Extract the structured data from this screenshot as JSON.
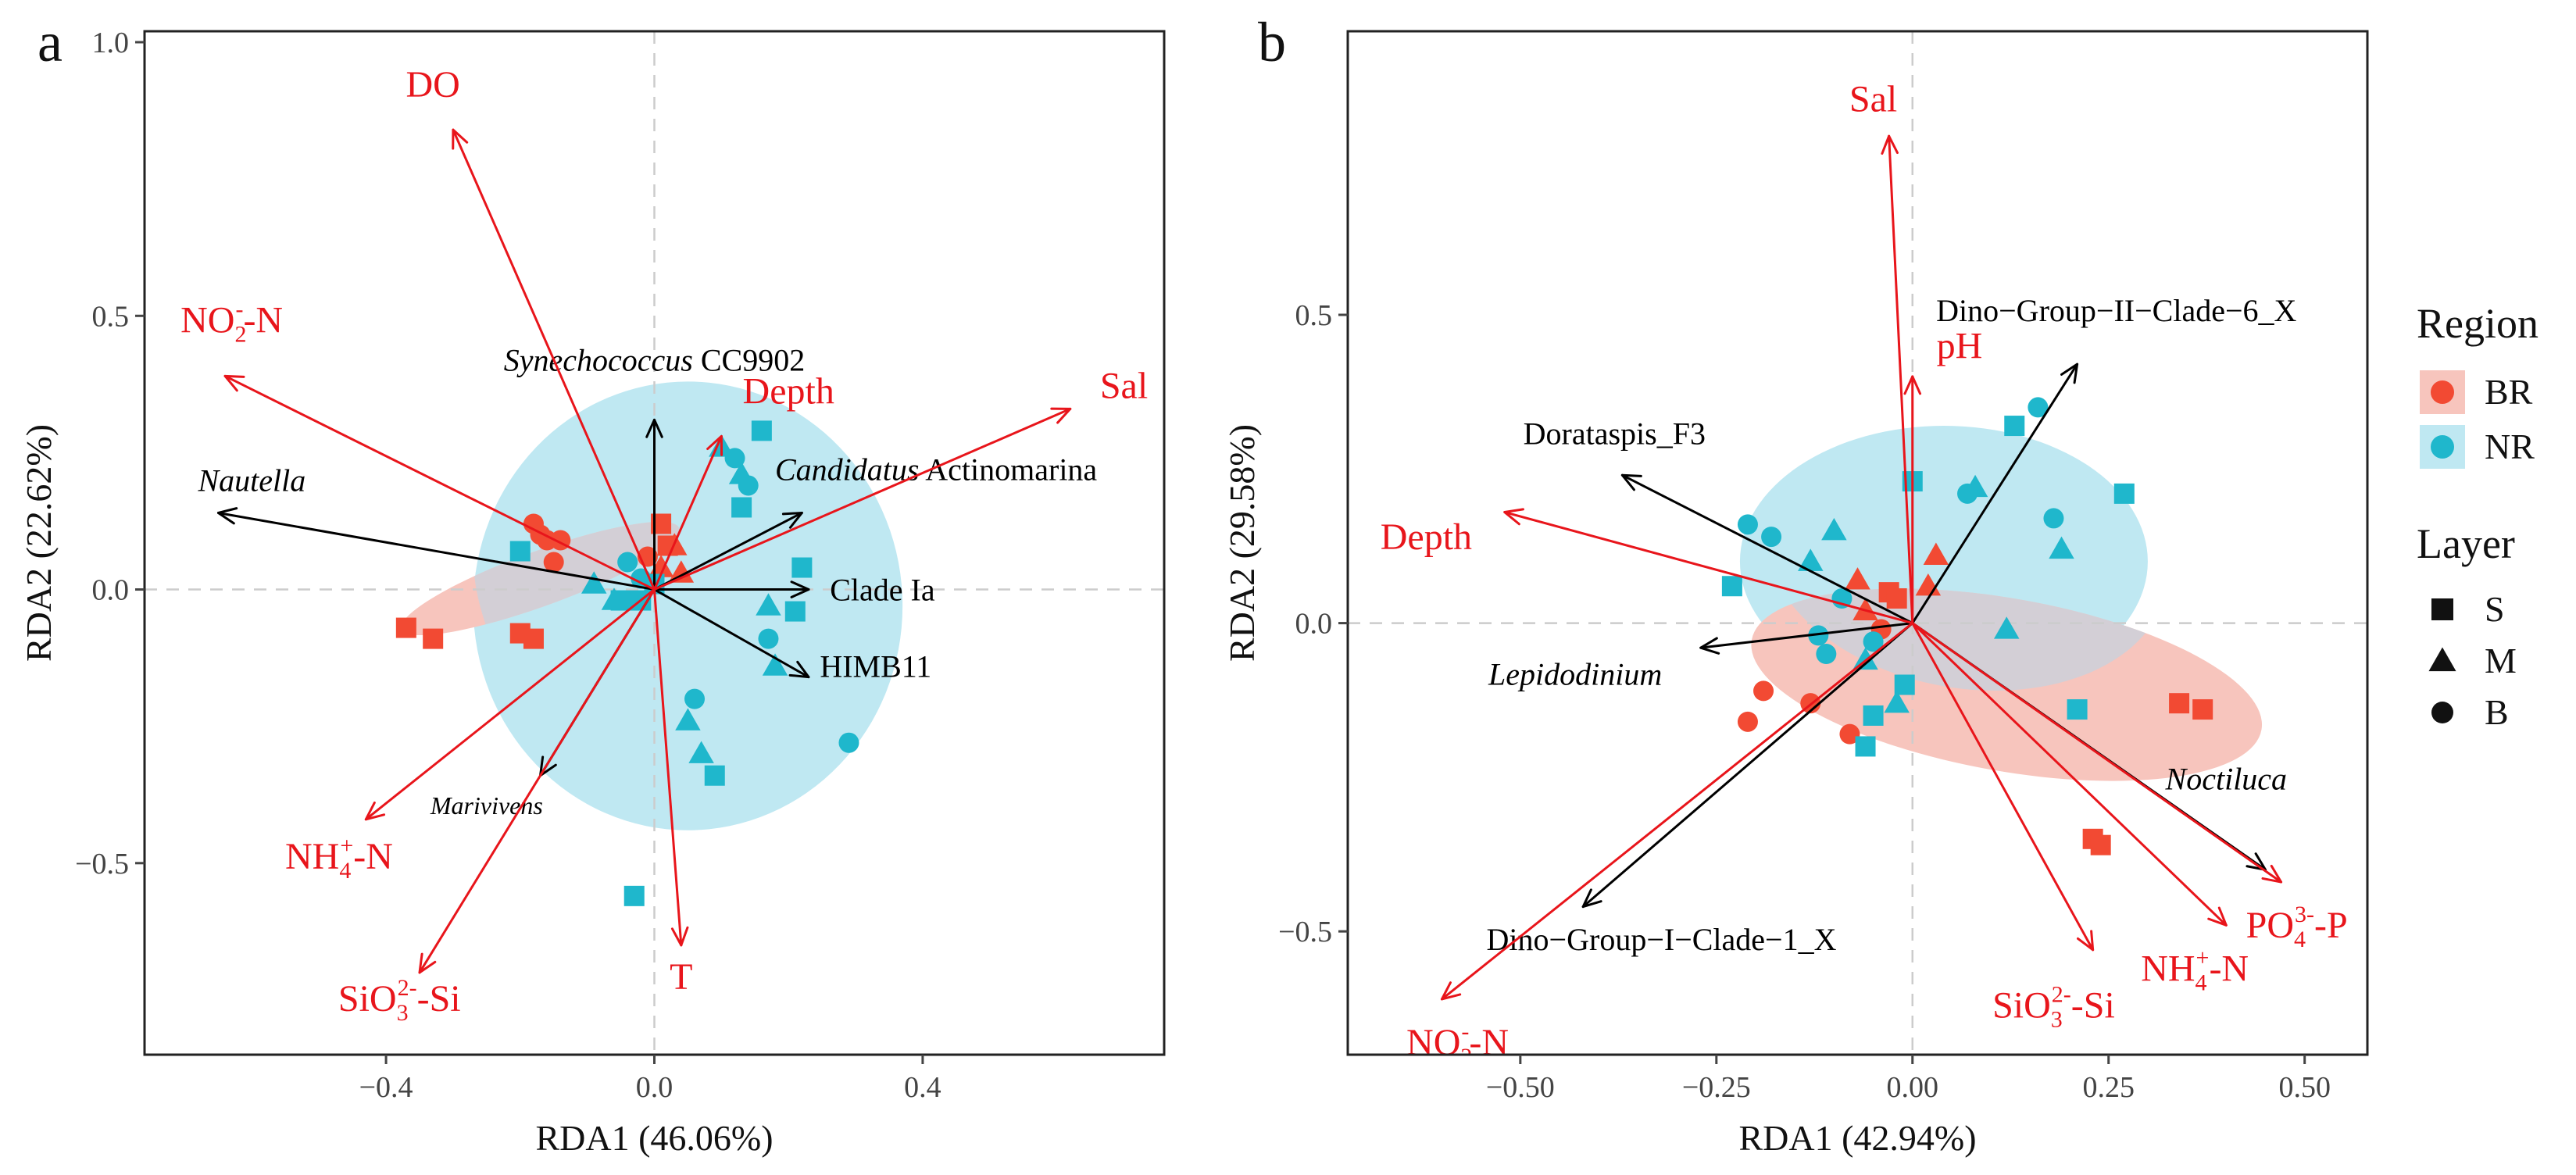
{
  "colors": {
    "env": "#e8151b",
    "taxa": "#000000",
    "BR": "#f24a33",
    "NR": "#1fb7cc",
    "BR_fill": "#f7c5bd",
    "NR_fill": "#bfe8f2",
    "overlap_fill": "#d3cfd6",
    "axis": "#444444",
    "zero": "#cccccc"
  },
  "legend": {
    "region_title": "Region",
    "region_items": [
      {
        "label": "BR",
        "key": "BR"
      },
      {
        "label": "NR",
        "key": "NR"
      }
    ],
    "layer_title": "Layer",
    "layer_items": [
      {
        "label": "S",
        "shape": "square"
      },
      {
        "label": "M",
        "shape": "triangle"
      },
      {
        "label": "B",
        "shape": "circle"
      }
    ]
  },
  "chart_data": [
    {
      "panel_label": "a",
      "type": "scatter",
      "xlabel": "RDA1 (46.06%)",
      "ylabel": "RDA2 (22.62%)",
      "xlim": [
        -0.76,
        0.76
      ],
      "ylim": [
        -0.85,
        1.02
      ],
      "xticks": [
        {
          "v": -0.4,
          "label": "−0.4"
        },
        {
          "v": 0.0,
          "label": "0.0"
        },
        {
          "v": 0.4,
          "label": "0.4"
        }
      ],
      "yticks": [
        {
          "v": -0.5,
          "label": "−0.5"
        },
        {
          "v": 0.0,
          "label": "0.0"
        },
        {
          "v": 0.5,
          "label": "0.5"
        },
        {
          "v": 1.0,
          "label": "1.0"
        }
      ],
      "ellipses": [
        {
          "region": "NR",
          "cx": 0.05,
          "cy": -0.03,
          "rx": 0.32,
          "ry": 0.41,
          "angle": 0
        },
        {
          "region": "BR",
          "cx": -0.17,
          "cy": 0.02,
          "rx": 0.22,
          "ry": 0.05,
          "angle": 20
        }
      ],
      "env_arrows": [
        {
          "name": "DO",
          "x": -0.3,
          "y": 0.84,
          "lx": -0.33,
          "ly": 0.9,
          "sub": "",
          "sup": "",
          "tail": ""
        },
        {
          "name": "NO",
          "x": -0.64,
          "y": 0.39,
          "lx": -0.63,
          "ly": 0.47,
          "sub": "2",
          "sup": "-",
          "tail": "-N"
        },
        {
          "name": "Depth",
          "x": 0.1,
          "y": 0.28,
          "lx": 0.2,
          "ly": 0.34,
          "sub": "",
          "sup": "",
          "tail": ""
        },
        {
          "name": "Sal",
          "x": 0.62,
          "y": 0.33,
          "lx": 0.7,
          "ly": 0.35,
          "sub": "",
          "sup": "",
          "tail": ""
        },
        {
          "name": "NH",
          "x": -0.43,
          "y": -0.42,
          "lx": -0.47,
          "ly": -0.51,
          "sub": "4",
          "sup": "+",
          "tail": "-N"
        },
        {
          "name": "SiO",
          "x": -0.35,
          "y": -0.7,
          "lx": -0.38,
          "ly": -0.77,
          "sub": "3",
          "sup": "2-",
          "tail": "-Si"
        },
        {
          "name": "T",
          "x": 0.04,
          "y": -0.65,
          "lx": 0.04,
          "ly": -0.73,
          "sub": "",
          "sup": "",
          "tail": ""
        }
      ],
      "taxa_arrows": [
        {
          "parts": [
            {
              "t": "Synechococcus",
              "i": true
            },
            {
              "t": " CC9902",
              "i": false
            }
          ],
          "x": 0.0,
          "y": 0.31,
          "lx": 0.0,
          "ly": 0.4,
          "size": 40
        },
        {
          "parts": [
            {
              "t": "Candidatus",
              "i": true
            },
            {
              "t": " Actinomarina",
              "i": false
            }
          ],
          "x": 0.22,
          "y": 0.14,
          "lx": 0.42,
          "ly": 0.2,
          "size": 40
        },
        {
          "parts": [
            {
              "t": "Nautella",
              "i": true
            }
          ],
          "x": -0.65,
          "y": 0.14,
          "lx": -0.6,
          "ly": 0.18,
          "size": 40
        },
        {
          "parts": [
            {
              "t": "Clade Ia",
              "i": false
            }
          ],
          "x": 0.23,
          "y": 0.0,
          "lx": 0.34,
          "ly": -0.02,
          "size": 40
        },
        {
          "parts": [
            {
              "t": "HIMB11",
              "i": false
            }
          ],
          "x": 0.23,
          "y": -0.16,
          "lx": 0.33,
          "ly": -0.16,
          "size": 40
        },
        {
          "parts": [
            {
              "t": "Marivivens",
              "i": true
            }
          ],
          "x": -0.17,
          "y": -0.34,
          "lx": -0.25,
          "ly": -0.41,
          "size": 32
        }
      ],
      "points": [
        {
          "region": "BR",
          "layer": "S",
          "x": -0.37,
          "y": -0.07
        },
        {
          "region": "BR",
          "layer": "S",
          "x": -0.33,
          "y": -0.09
        },
        {
          "region": "BR",
          "layer": "S",
          "x": -0.2,
          "y": -0.08
        },
        {
          "region": "BR",
          "layer": "S",
          "x": -0.18,
          "y": -0.09
        },
        {
          "region": "BR",
          "layer": "S",
          "x": 0.01,
          "y": 0.12
        },
        {
          "region": "BR",
          "layer": "S",
          "x": 0.02,
          "y": 0.08
        },
        {
          "region": "BR",
          "layer": "B",
          "x": -0.18,
          "y": 0.12
        },
        {
          "region": "BR",
          "layer": "B",
          "x": -0.17,
          "y": 0.1
        },
        {
          "region": "BR",
          "layer": "B",
          "x": -0.16,
          "y": 0.09
        },
        {
          "region": "BR",
          "layer": "B",
          "x": -0.14,
          "y": 0.09
        },
        {
          "region": "BR",
          "layer": "B",
          "x": -0.15,
          "y": 0.05
        },
        {
          "region": "BR",
          "layer": "B",
          "x": -0.01,
          "y": 0.06
        },
        {
          "region": "BR",
          "layer": "M",
          "x": 0.03,
          "y": 0.08
        },
        {
          "region": "BR",
          "layer": "M",
          "x": 0.04,
          "y": 0.03
        },
        {
          "region": "BR",
          "layer": "M",
          "x": 0.01,
          "y": 0.04
        },
        {
          "region": "NR",
          "layer": "S",
          "x": 0.16,
          "y": 0.29
        },
        {
          "region": "NR",
          "layer": "S",
          "x": 0.13,
          "y": 0.15
        },
        {
          "region": "NR",
          "layer": "S",
          "x": 0.22,
          "y": 0.04
        },
        {
          "region": "NR",
          "layer": "S",
          "x": 0.21,
          "y": -0.04
        },
        {
          "region": "NR",
          "layer": "S",
          "x": -0.2,
          "y": 0.07
        },
        {
          "region": "NR",
          "layer": "S",
          "x": -0.05,
          "y": -0.02
        },
        {
          "region": "NR",
          "layer": "S",
          "x": -0.02,
          "y": -0.02
        },
        {
          "region": "NR",
          "layer": "S",
          "x": 0.0,
          "y": 0.01
        },
        {
          "region": "NR",
          "layer": "S",
          "x": 0.09,
          "y": -0.34
        },
        {
          "region": "NR",
          "layer": "S",
          "x": -0.03,
          "y": -0.56
        },
        {
          "region": "NR",
          "layer": "M",
          "x": 0.1,
          "y": 0.26
        },
        {
          "region": "NR",
          "layer": "M",
          "x": 0.13,
          "y": 0.21
        },
        {
          "region": "NR",
          "layer": "M",
          "x": 0.17,
          "y": -0.03
        },
        {
          "region": "NR",
          "layer": "M",
          "x": 0.18,
          "y": -0.14
        },
        {
          "region": "NR",
          "layer": "M",
          "x": -0.09,
          "y": 0.01
        },
        {
          "region": "NR",
          "layer": "M",
          "x": -0.06,
          "y": -0.02
        },
        {
          "region": "NR",
          "layer": "M",
          "x": 0.05,
          "y": -0.24
        },
        {
          "region": "NR",
          "layer": "M",
          "x": 0.07,
          "y": -0.3
        },
        {
          "region": "NR",
          "layer": "B",
          "x": 0.12,
          "y": 0.24
        },
        {
          "region": "NR",
          "layer": "B",
          "x": 0.14,
          "y": 0.19
        },
        {
          "region": "NR",
          "layer": "B",
          "x": 0.17,
          "y": -0.09
        },
        {
          "region": "NR",
          "layer": "B",
          "x": 0.29,
          "y": -0.28
        },
        {
          "region": "NR",
          "layer": "B",
          "x": 0.06,
          "y": -0.2
        },
        {
          "region": "NR",
          "layer": "B",
          "x": -0.04,
          "y": 0.05
        },
        {
          "region": "NR",
          "layer": "B",
          "x": -0.02,
          "y": 0.02
        }
      ]
    },
    {
      "panel_label": "b",
      "type": "scatter",
      "xlabel": "RDA1 (42.94%)",
      "ylabel": "RDA2 (29.58%)",
      "xlim": [
        -0.72,
        0.58
      ],
      "ylim": [
        -0.7,
        0.96
      ],
      "xticks": [
        {
          "v": -0.5,
          "label": "−0.50"
        },
        {
          "v": -0.25,
          "label": "−0.25"
        },
        {
          "v": 0.0,
          "label": "0.00"
        },
        {
          "v": 0.25,
          "label": "0.25"
        },
        {
          "v": 0.5,
          "label": "0.50"
        }
      ],
      "yticks": [
        {
          "v": -0.5,
          "label": "−0.5"
        },
        {
          "v": 0.0,
          "label": "0.0"
        },
        {
          "v": 0.5,
          "label": "0.5"
        }
      ],
      "ellipses": [
        {
          "region": "NR",
          "cx": 0.04,
          "cy": 0.1,
          "rx": 0.26,
          "ry": 0.22,
          "angle": 0
        },
        {
          "region": "BR",
          "cx": 0.12,
          "cy": -0.1,
          "rx": 0.33,
          "ry": 0.14,
          "angle": -10
        }
      ],
      "env_arrows": [
        {
          "name": "Sal",
          "x": -0.03,
          "y": 0.79,
          "lx": -0.05,
          "ly": 0.83,
          "sub": "",
          "sup": "",
          "tail": ""
        },
        {
          "name": "pH",
          "x": 0.0,
          "y": 0.4,
          "lx": 0.06,
          "ly": 0.43,
          "sub": "",
          "sup": "",
          "tail": ""
        },
        {
          "name": "Depth",
          "x": -0.52,
          "y": 0.18,
          "lx": -0.62,
          "ly": 0.12,
          "sub": "",
          "sup": "",
          "tail": ""
        },
        {
          "name": "NO",
          "x": -0.6,
          "y": -0.61,
          "lx": -0.58,
          "ly": -0.7,
          "sub": "2",
          "sup": "-",
          "tail": "-N"
        },
        {
          "name": "SiO",
          "x": 0.23,
          "y": -0.53,
          "lx": 0.18,
          "ly": -0.64,
          "sub": "3",
          "sup": "2-",
          "tail": "-Si"
        },
        {
          "name": "NH",
          "x": 0.4,
          "y": -0.49,
          "lx": 0.36,
          "ly": -0.58,
          "sub": "4",
          "sup": "+",
          "tail": "-N"
        },
        {
          "name": "PO",
          "x": 0.47,
          "y": -0.42,
          "lx": 0.49,
          "ly": -0.51,
          "sub": "4",
          "sup": "3-",
          "tail": "-P"
        }
      ],
      "taxa_arrows": [
        {
          "parts": [
            {
              "t": "Dino−Group−II−Clade−6_X",
              "i": false
            }
          ],
          "x": 0.21,
          "y": 0.42,
          "lx": 0.26,
          "ly": 0.49,
          "size": 40
        },
        {
          "parts": [
            {
              "t": "Dorataspis_F3",
              "i": false
            }
          ],
          "x": -0.37,
          "y": 0.24,
          "lx": -0.38,
          "ly": 0.29,
          "size": 40
        },
        {
          "parts": [
            {
              "t": "Lepidodinium",
              "i": true
            }
          ],
          "x": -0.27,
          "y": -0.04,
          "lx": -0.43,
          "ly": -0.1,
          "size": 40
        },
        {
          "parts": [
            {
              "t": "Noctiluca",
              "i": true
            }
          ],
          "x": 0.45,
          "y": -0.4,
          "lx": 0.4,
          "ly": -0.27,
          "size": 40
        },
        {
          "parts": [
            {
              "t": "Dino−Group−I−Clade−1_X",
              "i": false
            }
          ],
          "x": -0.42,
          "y": -0.46,
          "lx": -0.32,
          "ly": -0.53,
          "size": 40
        }
      ],
      "points": [
        {
          "region": "BR",
          "layer": "S",
          "x": 0.34,
          "y": -0.13
        },
        {
          "region": "BR",
          "layer": "S",
          "x": 0.37,
          "y": -0.14
        },
        {
          "region": "BR",
          "layer": "S",
          "x": 0.23,
          "y": -0.35
        },
        {
          "region": "BR",
          "layer": "S",
          "x": 0.24,
          "y": -0.36
        },
        {
          "region": "BR",
          "layer": "S",
          "x": -0.03,
          "y": 0.05
        },
        {
          "region": "BR",
          "layer": "S",
          "x": -0.02,
          "y": 0.04
        },
        {
          "region": "BR",
          "layer": "M",
          "x": 0.03,
          "y": 0.11
        },
        {
          "region": "BR",
          "layer": "M",
          "x": 0.02,
          "y": 0.06
        },
        {
          "region": "BR",
          "layer": "M",
          "x": -0.07,
          "y": 0.07
        },
        {
          "region": "BR",
          "layer": "M",
          "x": -0.06,
          "y": 0.02
        },
        {
          "region": "BR",
          "layer": "B",
          "x": -0.19,
          "y": -0.11
        },
        {
          "region": "BR",
          "layer": "B",
          "x": -0.21,
          "y": -0.16
        },
        {
          "region": "BR",
          "layer": "B",
          "x": -0.13,
          "y": -0.13
        },
        {
          "region": "BR",
          "layer": "B",
          "x": -0.08,
          "y": -0.18
        },
        {
          "region": "BR",
          "layer": "B",
          "x": -0.04,
          "y": -0.01
        },
        {
          "region": "NR",
          "layer": "S",
          "x": 0.27,
          "y": 0.21
        },
        {
          "region": "NR",
          "layer": "S",
          "x": 0.13,
          "y": 0.32
        },
        {
          "region": "NR",
          "layer": "S",
          "x": 0.0,
          "y": 0.23
        },
        {
          "region": "NR",
          "layer": "S",
          "x": -0.23,
          "y": 0.06
        },
        {
          "region": "NR",
          "layer": "S",
          "x": -0.05,
          "y": -0.15
        },
        {
          "region": "NR",
          "layer": "S",
          "x": -0.01,
          "y": -0.1
        },
        {
          "region": "NR",
          "layer": "S",
          "x": -0.06,
          "y": -0.2
        },
        {
          "region": "NR",
          "layer": "S",
          "x": 0.21,
          "y": -0.14
        },
        {
          "region": "NR",
          "layer": "M",
          "x": -0.13,
          "y": 0.1
        },
        {
          "region": "NR",
          "layer": "M",
          "x": -0.1,
          "y": 0.15
        },
        {
          "region": "NR",
          "layer": "M",
          "x": 0.08,
          "y": 0.22
        },
        {
          "region": "NR",
          "layer": "M",
          "x": 0.19,
          "y": 0.12
        },
        {
          "region": "NR",
          "layer": "M",
          "x": 0.12,
          "y": -0.01
        },
        {
          "region": "NR",
          "layer": "M",
          "x": -0.06,
          "y": -0.06
        },
        {
          "region": "NR",
          "layer": "M",
          "x": -0.02,
          "y": -0.13
        },
        {
          "region": "NR",
          "layer": "B",
          "x": 0.16,
          "y": 0.35
        },
        {
          "region": "NR",
          "layer": "B",
          "x": 0.07,
          "y": 0.21
        },
        {
          "region": "NR",
          "layer": "B",
          "x": 0.18,
          "y": 0.17
        },
        {
          "region": "NR",
          "layer": "B",
          "x": -0.21,
          "y": 0.16
        },
        {
          "region": "NR",
          "layer": "B",
          "x": -0.18,
          "y": 0.14
        },
        {
          "region": "NR",
          "layer": "B",
          "x": -0.12,
          "y": -0.02
        },
        {
          "region": "NR",
          "layer": "B",
          "x": -0.09,
          "y": 0.04
        },
        {
          "region": "NR",
          "layer": "B",
          "x": -0.11,
          "y": -0.05
        },
        {
          "region": "NR",
          "layer": "B",
          "x": -0.05,
          "y": -0.03
        }
      ]
    }
  ]
}
